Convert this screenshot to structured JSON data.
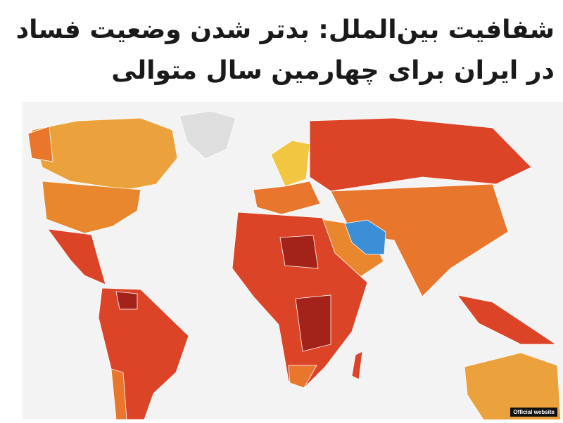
{
  "article": {
    "headline": "شفافیت بین‌الملل: بدتر شدن وضعیت فساد در ایران برای چهارمین سال متوالی"
  },
  "image": {
    "credit": "Official website",
    "highlighted_country_color": "#3b8fd6",
    "colors": {
      "very_high": "#a3231a",
      "high": "#dc4428",
      "medium": "#e8762c",
      "low": "#eba23c",
      "very_low": "#f2c640",
      "no_data": "#dedede"
    }
  }
}
